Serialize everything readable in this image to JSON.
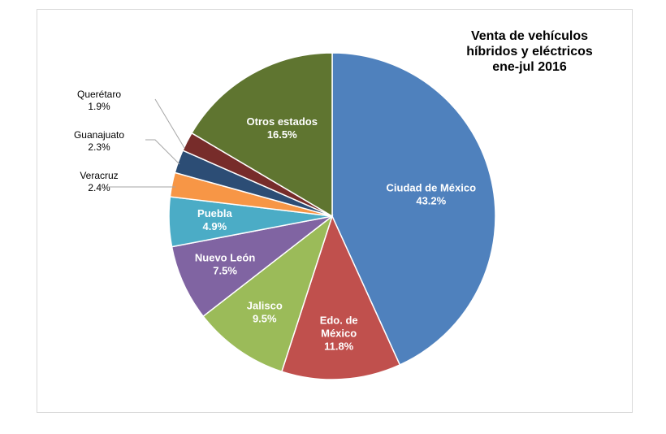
{
  "chart_data": {
    "type": "pie",
    "title": [
      "Venta de vehículos",
      "híbridos y eléctricos",
      "ene-jul 2016"
    ],
    "slices": [
      {
        "label": [
          "Ciudad de México"
        ],
        "value": 43.2,
        "value_label": "43.2%",
        "color": "#4f81bd"
      },
      {
        "label": [
          "Edo. de",
          "México"
        ],
        "value": 11.8,
        "value_label": "11.8%",
        "color": "#c0504d"
      },
      {
        "label": [
          "Jalisco"
        ],
        "value": 9.5,
        "value_label": "9.5%",
        "color": "#9bbb59"
      },
      {
        "label": [
          "Nuevo León"
        ],
        "value": 7.5,
        "value_label": "7.5%",
        "color": "#8064a2"
      },
      {
        "label": [
          "Puebla"
        ],
        "value": 4.9,
        "value_label": "4.9%",
        "color": "#4bacc6"
      },
      {
        "label": [
          "Veracruz"
        ],
        "value": 2.4,
        "value_label": "2.4%",
        "color": "#f79646"
      },
      {
        "label": [
          "Guanajuato"
        ],
        "value": 2.3,
        "value_label": "2.3%",
        "color": "#2c4d75"
      },
      {
        "label": [
          "Querétaro"
        ],
        "value": 1.9,
        "value_label": "1.9%",
        "color": "#772c2a"
      },
      {
        "label": [
          "Otros estados"
        ],
        "value": 16.5,
        "value_label": "16.5%",
        "color": "#5f7530"
      }
    ],
    "start_angle": "12 o'clock",
    "direction": "clockwise",
    "legend": "none"
  }
}
